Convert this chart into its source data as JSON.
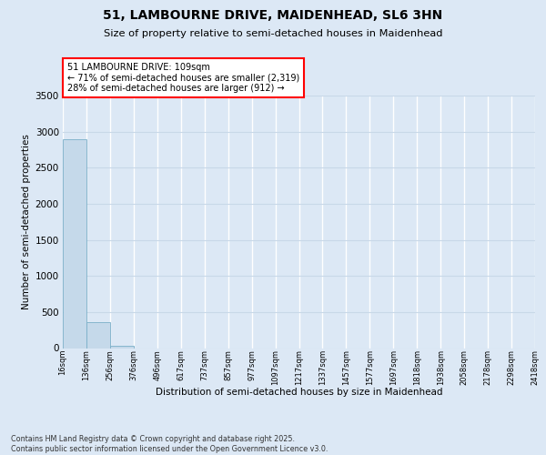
{
  "title": "51, LAMBOURNE DRIVE, MAIDENHEAD, SL6 3HN",
  "subtitle": "Size of property relative to semi-detached houses in Maidenhead",
  "xlabel": "Distribution of semi-detached houses by size in Maidenhead",
  "ylabel": "Number of semi-detached properties",
  "footer": "Contains HM Land Registry data © Crown copyright and database right 2025.\nContains public sector information licensed under the Open Government Licence v3.0.",
  "annotation_title": "51 LAMBOURNE DRIVE: 109sqm",
  "annotation_line2": "← 71% of semi-detached houses are smaller (2,319)",
  "annotation_line3": "28% of semi-detached houses are larger (912) →",
  "bins": [
    16,
    136,
    256,
    376,
    496,
    617,
    737,
    857,
    977,
    1097,
    1217,
    1337,
    1457,
    1577,
    1697,
    1818,
    1938,
    2058,
    2178,
    2298,
    2418
  ],
  "bin_labels": [
    "16sqm",
    "136sqm",
    "256sqm",
    "376sqm",
    "496sqm",
    "617sqm",
    "737sqm",
    "857sqm",
    "977sqm",
    "1097sqm",
    "1217sqm",
    "1337sqm",
    "1457sqm",
    "1577sqm",
    "1697sqm",
    "1818sqm",
    "1938sqm",
    "2058sqm",
    "2178sqm",
    "2298sqm",
    "2418sqm"
  ],
  "counts": [
    2900,
    360,
    30,
    0,
    0,
    0,
    0,
    0,
    0,
    0,
    0,
    0,
    0,
    0,
    0,
    0,
    0,
    0,
    0,
    0
  ],
  "bar_color": "#c5d9ea",
  "bar_edge_color": "#7aafc8",
  "bg_color": "#dce8f5",
  "grid_color_h": "#c8d8e8",
  "grid_color_v": "#ffffff",
  "ylim": [
    0,
    3500
  ],
  "yticks": [
    0,
    500,
    1000,
    1500,
    2000,
    2500,
    3000,
    3500
  ]
}
